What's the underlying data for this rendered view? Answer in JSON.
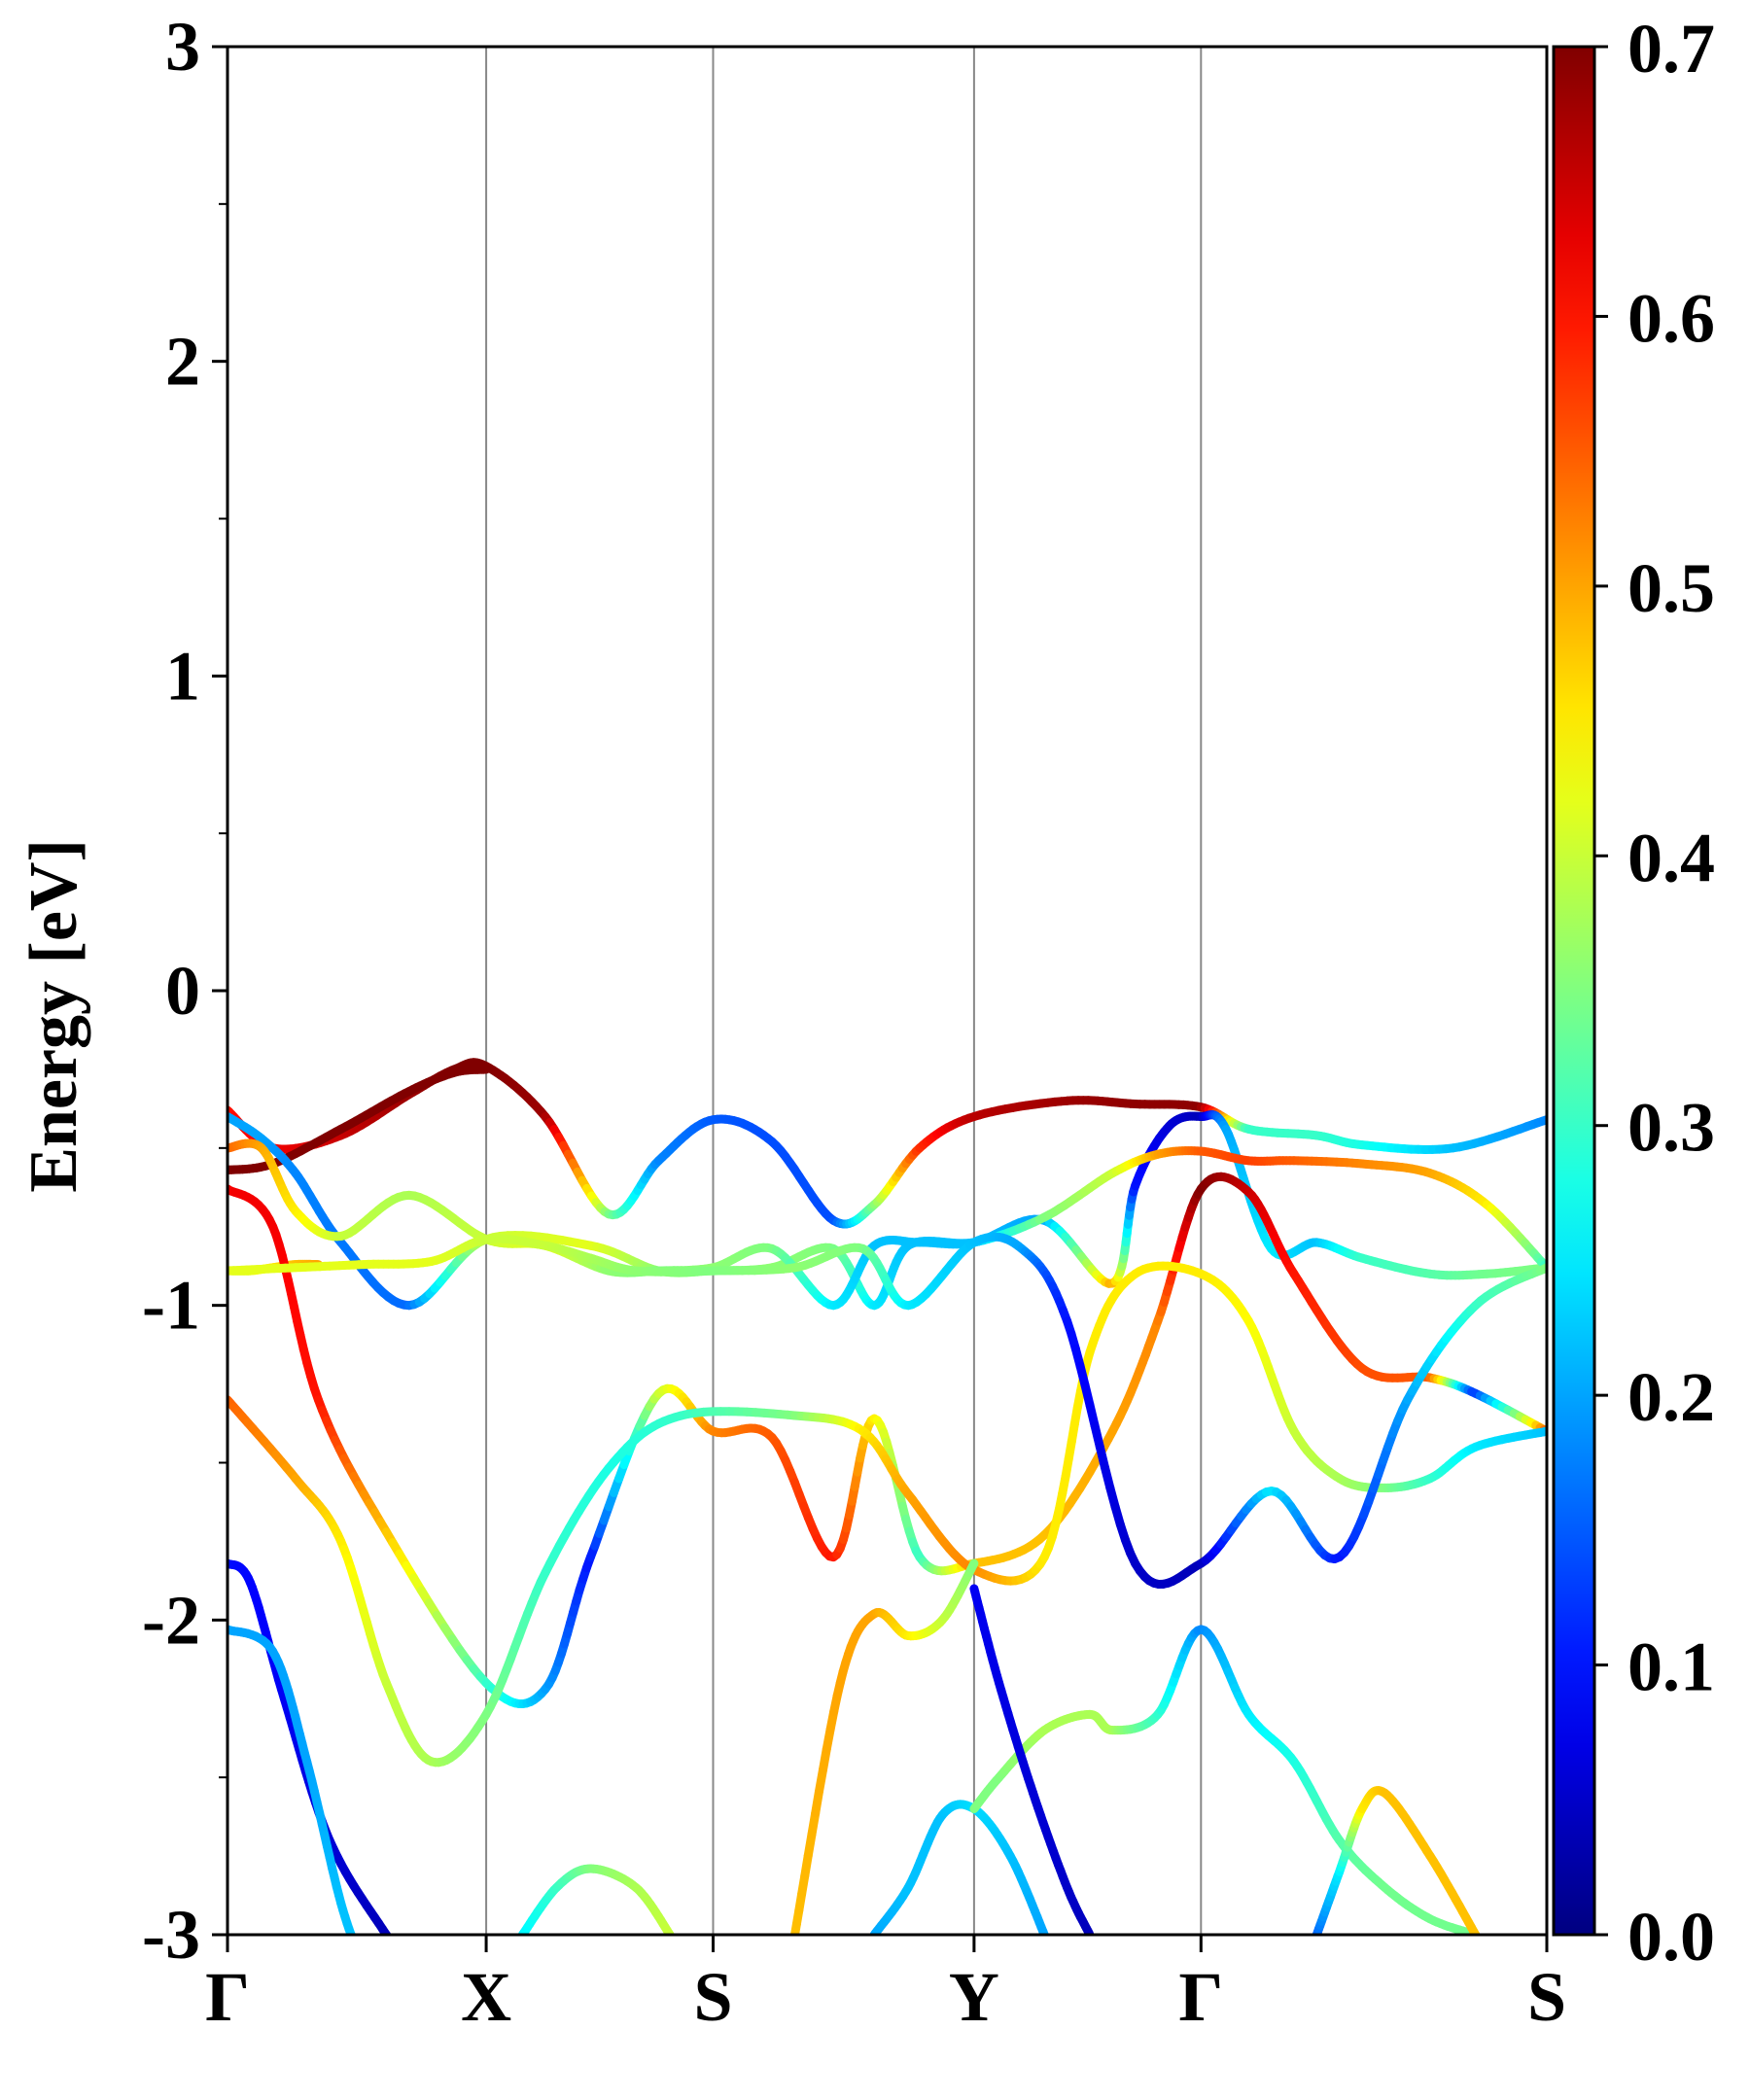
{
  "chart_data": {
    "type": "line",
    "title": "",
    "xlabel": "",
    "ylabel": "Energy [eV]",
    "ylim": [
      -3,
      3
    ],
    "yticks": [
      "3",
      "2",
      "1",
      "0",
      "-1",
      "-2",
      "-3"
    ],
    "ytick_values": [
      3,
      2,
      1,
      0,
      -1,
      -2,
      -3
    ],
    "xlim": [
      0,
      5.814
    ],
    "kpath": [
      {
        "label": "Γ",
        "x": 0
      },
      {
        "label": "X",
        "x": 1.14
      },
      {
        "label": "S",
        "x": 2.14
      },
      {
        "label": "Y",
        "x": 3.29
      },
      {
        "label": "Γ",
        "x": 4.29
      },
      {
        "label": "S",
        "x": 5.814
      }
    ],
    "colorbar": {
      "colormap": "jet",
      "range": [
        0.0,
        0.7
      ],
      "ticks": [
        "0.7",
        "0.6",
        "0.5",
        "0.4",
        "0.3",
        "0.2",
        "0.1",
        "0.0"
      ],
      "tick_values": [
        0.7,
        0.6,
        0.5,
        0.4,
        0.3,
        0.2,
        0.1,
        0.0
      ]
    },
    "grid": "vertical lines at high-symmetry points",
    "bands": [
      {
        "x": [
          0,
          0.2,
          0.5,
          0.8,
          1.0,
          1.14,
          1.4,
          1.68,
          1.9,
          2.14,
          2.4,
          2.67,
          2.85,
          3.05,
          3.29,
          3.7,
          4.0,
          4.29,
          4.5,
          4.8,
          5.0,
          5.4,
          5.814
        ],
        "y": [
          -0.38,
          -0.5,
          -0.46,
          -0.33,
          -0.25,
          -0.24,
          -0.4,
          -0.71,
          -0.54,
          -0.41,
          -0.48,
          -0.73,
          -0.68,
          -0.5,
          -0.4,
          -0.35,
          -0.36,
          -0.37,
          -0.44,
          -0.46,
          -0.49,
          -0.5,
          -0.41
        ],
        "c": [
          0.6,
          0.62,
          0.65,
          0.68,
          0.7,
          0.7,
          0.68,
          0.35,
          0.18,
          0.15,
          0.14,
          0.14,
          0.35,
          0.58,
          0.66,
          0.68,
          0.69,
          0.69,
          0.3,
          0.3,
          0.28,
          0.22,
          0.18
        ]
      },
      {
        "x": [
          0,
          0.2,
          0.5,
          0.8,
          1.0,
          1.14
        ],
        "y": [
          -0.57,
          -0.55,
          -0.44,
          -0.32,
          -0.26,
          -0.25
        ],
        "c": [
          0.7,
          0.7,
          0.7,
          0.7,
          0.7,
          0.7
        ]
      },
      {
        "x": [
          0,
          0.15,
          0.3,
          0.5,
          0.8,
          1.14,
          1.6,
          1.9,
          2.14,
          2.4,
          2.67,
          2.85,
          3.0,
          3.29,
          3.6,
          3.9,
          4.0,
          4.15,
          4.29,
          4.4,
          4.6,
          4.8,
          5.0,
          5.3,
          5.55,
          5.814
        ],
        "y": [
          -0.4,
          -0.47,
          -0.58,
          -0.8,
          -1.0,
          -0.79,
          -0.81,
          -0.89,
          -0.89,
          -0.88,
          -0.82,
          -1.0,
          -0.81,
          -0.8,
          -0.73,
          -0.93,
          -0.62,
          -0.43,
          -0.4,
          -0.44,
          -0.82,
          -0.8,
          -0.85,
          -0.9,
          -0.9,
          -0.88
        ],
        "c": [
          0.2,
          0.2,
          0.18,
          0.17,
          0.16,
          0.4,
          0.42,
          0.36,
          0.35,
          0.36,
          0.35,
          0.25,
          0.22,
          0.22,
          0.2,
          0.5,
          0.1,
          0.06,
          0.04,
          0.2,
          0.25,
          0.22,
          0.3,
          0.32,
          0.34,
          0.35
        ]
      },
      {
        "x": [
          0,
          0.15,
          0.3,
          0.5,
          0.8,
          1.14,
          1.4,
          1.68,
          1.9,
          2.14,
          2.4,
          2.67,
          2.85,
          3.05,
          3.29,
          3.6,
          3.9,
          4.1,
          4.29,
          4.5,
          4.7,
          5.0,
          5.3,
          5.55,
          5.814
        ],
        "y": [
          -0.5,
          -0.5,
          -0.7,
          -0.78,
          -0.65,
          -0.79,
          -0.81,
          -0.89,
          -0.89,
          -0.88,
          -0.82,
          -1.0,
          -0.81,
          -0.8,
          -0.8,
          -0.72,
          -0.58,
          -0.52,
          -0.51,
          -0.54,
          -0.54,
          -0.55,
          -0.58,
          -0.68,
          -0.88
        ],
        "c": [
          0.55,
          0.5,
          0.45,
          0.4,
          0.38,
          0.4,
          0.42,
          0.36,
          0.35,
          0.36,
          0.35,
          0.25,
          0.22,
          0.22,
          0.22,
          0.35,
          0.4,
          0.5,
          0.55,
          0.57,
          0.55,
          0.52,
          0.5,
          0.45,
          0.3
        ]
      },
      {
        "x": [
          0,
          0.1,
          0.2,
          0.3,
          0.4
        ],
        "y": [
          -0.89,
          -0.89,
          -0.88,
          -0.87,
          -0.87
        ],
        "c": [
          0.42,
          0.42,
          0.45,
          0.48,
          0.5
        ]
      },
      {
        "x": [
          0,
          0.2,
          0.4,
          0.7,
          1.14,
          1.4,
          1.6,
          1.9,
          2.14,
          2.4,
          2.67,
          2.85,
          3.05,
          3.29,
          3.6,
          3.9,
          4.1,
          4.29,
          4.5,
          4.7,
          5.0,
          5.3,
          5.5,
          5.814
        ],
        "y": [
          -0.63,
          -0.75,
          -1.3,
          -1.72,
          -2.2,
          -2.22,
          -1.8,
          -1.28,
          -1.4,
          -1.42,
          -1.8,
          -1.36,
          -1.8,
          -1.82,
          -1.73,
          -1.4,
          -1.05,
          -0.63,
          -0.64,
          -0.9,
          -1.2,
          -1.23,
          -1.28,
          -1.4
        ],
        "c": [
          0.62,
          0.62,
          0.6,
          0.48,
          0.3,
          0.2,
          0.1,
          0.4,
          0.52,
          0.55,
          0.6,
          0.45,
          0.3,
          0.48,
          0.48,
          0.5,
          0.52,
          0.7,
          0.65,
          0.6,
          0.56,
          0.55,
          0.12,
          0.55
        ]
      },
      {
        "x": [
          0,
          0.3,
          0.5,
          0.7,
          0.9,
          1.14,
          1.4,
          1.7,
          2.0,
          2.5,
          2.8,
          3.0,
          3.29,
          3.6,
          3.8,
          4.0,
          4.29,
          4.5,
          4.7,
          4.9,
          5.1,
          5.3,
          5.5,
          5.814
        ],
        "y": [
          -1.3,
          -1.55,
          -1.75,
          -2.2,
          -2.45,
          -2.3,
          -1.85,
          -1.5,
          -1.35,
          -1.35,
          -1.4,
          -1.6,
          -1.84,
          -1.8,
          -1.15,
          -0.9,
          -0.9,
          -1.05,
          -1.4,
          -1.55,
          -1.58,
          -1.55,
          -1.45,
          -1.4
        ],
        "c": [
          0.55,
          0.5,
          0.45,
          0.4,
          0.38,
          0.35,
          0.3,
          0.28,
          0.3,
          0.35,
          0.45,
          0.5,
          0.52,
          0.45,
          0.45,
          0.45,
          0.45,
          0.44,
          0.4,
          0.38,
          0.35,
          0.3,
          0.25,
          0.22
        ]
      },
      {
        "x": [
          0,
          0.3,
          0.6,
          0.9,
          1.14,
          1.4,
          1.6,
          1.8,
          2.14,
          2.5,
          2.8,
          3.0,
          3.29,
          3.5,
          3.7,
          4.0,
          4.29,
          4.6,
          4.9,
          5.2,
          5.5,
          5.814
        ],
        "y": [
          -0.89,
          -0.88,
          -0.87,
          -0.86,
          -0.79,
          -0.81,
          -0.85,
          -0.89,
          -0.89,
          -0.88,
          -0.82,
          -1.0,
          -0.8,
          -0.82,
          -1.05,
          -1.82,
          -1.82,
          -1.59,
          -1.8,
          -1.3,
          -1.0,
          -0.88
        ],
        "c": [
          0.42,
          0.42,
          0.42,
          0.42,
          0.4,
          0.4,
          0.38,
          0.36,
          0.35,
          0.36,
          0.35,
          0.25,
          0.22,
          0.2,
          0.1,
          0.05,
          0.04,
          0.25,
          0.1,
          0.2,
          0.3,
          0.35
        ]
      },
      {
        "x": [
          0,
          0.1,
          0.25,
          0.45,
          0.7,
          0.9
        ],
        "y": [
          -1.82,
          -1.88,
          -2.25,
          -2.7,
          -3.0,
          -3.2
        ],
        "c": [
          0.1,
          0.09,
          0.08,
          0.06,
          0.04,
          0.03
        ]
      },
      {
        "x": [
          0,
          0.2,
          0.35,
          0.5,
          0.6
        ],
        "y": [
          -2.03,
          -2.1,
          -2.45,
          -2.9,
          -3.1
        ],
        "c": [
          0.2,
          0.2,
          0.2,
          0.22,
          0.22
        ]
      },
      {
        "x": [
          1.3,
          1.45,
          1.6,
          1.8,
          1.95
        ],
        "y": [
          -3.0,
          -2.85,
          -2.79,
          -2.85,
          -3.0
        ],
        "c": [
          0.25,
          0.3,
          0.35,
          0.38,
          0.4
        ]
      },
      {
        "x": [
          2.5,
          2.7,
          2.85,
          3.0,
          3.15,
          3.29
        ],
        "y": [
          -3.0,
          -2.2,
          -1.98,
          -2.05,
          -2.0,
          -1.82
        ],
        "c": [
          0.48,
          0.5,
          0.5,
          0.45,
          0.4,
          0.35
        ]
      },
      {
        "x": [
          2.85,
          3.0,
          3.15,
          3.29,
          3.45,
          3.6
        ],
        "y": [
          -3.0,
          -2.85,
          -2.62,
          -2.6,
          -2.75,
          -3.0
        ],
        "c": [
          0.2,
          0.22,
          0.22,
          0.24,
          0.22,
          0.2
        ]
      },
      {
        "x": [
          3.29,
          3.4,
          3.6,
          3.8,
          3.9,
          4.1,
          4.29,
          4.5,
          4.7,
          4.9,
          5.1,
          5.3,
          5.5
        ],
        "y": [
          -2.6,
          -2.5,
          -2.35,
          -2.3,
          -2.35,
          -2.3,
          -2.03,
          -2.3,
          -2.45,
          -2.7,
          -2.85,
          -2.95,
          -3.0
        ],
        "c": [
          0.35,
          0.35,
          0.38,
          0.38,
          0.38,
          0.3,
          0.18,
          0.25,
          0.28,
          0.32,
          0.34,
          0.34,
          0.34
        ]
      },
      {
        "x": [
          3.29,
          3.4,
          3.55,
          3.7,
          3.8
        ],
        "y": [
          -1.9,
          -2.2,
          -2.55,
          -2.85,
          -3.0
        ],
        "c": [
          0.08,
          0.07,
          0.06,
          0.05,
          0.04
        ]
      },
      {
        "x": [
          4.8,
          4.9,
          5.0,
          5.1,
          5.3,
          5.5
        ],
        "y": [
          -3.0,
          -2.8,
          -2.6,
          -2.55,
          -2.75,
          -3.0
        ],
        "c": [
          0.15,
          0.25,
          0.45,
          0.48,
          0.48,
          0.48
        ]
      }
    ]
  }
}
